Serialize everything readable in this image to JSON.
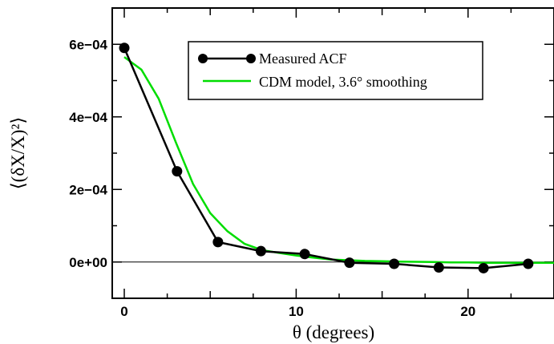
{
  "chart_data": {
    "type": "line",
    "title": "",
    "xlabel": "θ (degrees)",
    "ylabel": "⟨(δX/X)²⟩",
    "xlim": [
      -0.7,
      25
    ],
    "ylim": [
      -0.0001,
      0.0007
    ],
    "x_ticks": [
      0,
      10,
      20
    ],
    "x_tick_labels": [
      "0",
      "10",
      "20"
    ],
    "y_ticks": [
      0,
      0.0002,
      0.0004,
      0.0006
    ],
    "y_tick_labels": [
      "0e+00",
      "2e−04",
      "4e−04",
      "6e−04"
    ],
    "reference_line_y": 0,
    "legend_position": "top-right",
    "series": [
      {
        "name": "Measured ACF",
        "color": "#000000",
        "marker": "circle",
        "x": [
          0.0,
          3.07,
          5.45,
          7.95,
          10.5,
          13.1,
          15.7,
          18.3,
          20.9,
          23.5
        ],
        "y": [
          0.00059,
          0.00025,
          5.5e-05,
          3e-05,
          2.2e-05,
          -2e-06,
          -5e-06,
          -1.5e-05,
          -1.7e-05,
          -5e-06
        ]
      },
      {
        "name": "CDM model, 3.6° smoothing",
        "color": "#00dd00",
        "marker": "none",
        "x": [
          0,
          1,
          2,
          3,
          4,
          5,
          6,
          7,
          8,
          9,
          10,
          11,
          12,
          13,
          14,
          15,
          16,
          17,
          18,
          19,
          20,
          21,
          22,
          23,
          24,
          25
        ],
        "y": [
          0.000565,
          0.00053,
          0.00045,
          0.00033,
          0.000215,
          0.000135,
          8.5e-05,
          5e-05,
          3.3e-05,
          2.5e-05,
          1.8e-05,
          1.2e-05,
          7e-06,
          5e-06,
          3e-06,
          2e-06,
          1e-06,
          5e-07,
          0.0,
          -1e-06,
          -1e-06,
          -2e-06,
          -2e-06,
          -2e-06,
          -2e-06,
          -2e-06
        ]
      }
    ]
  }
}
